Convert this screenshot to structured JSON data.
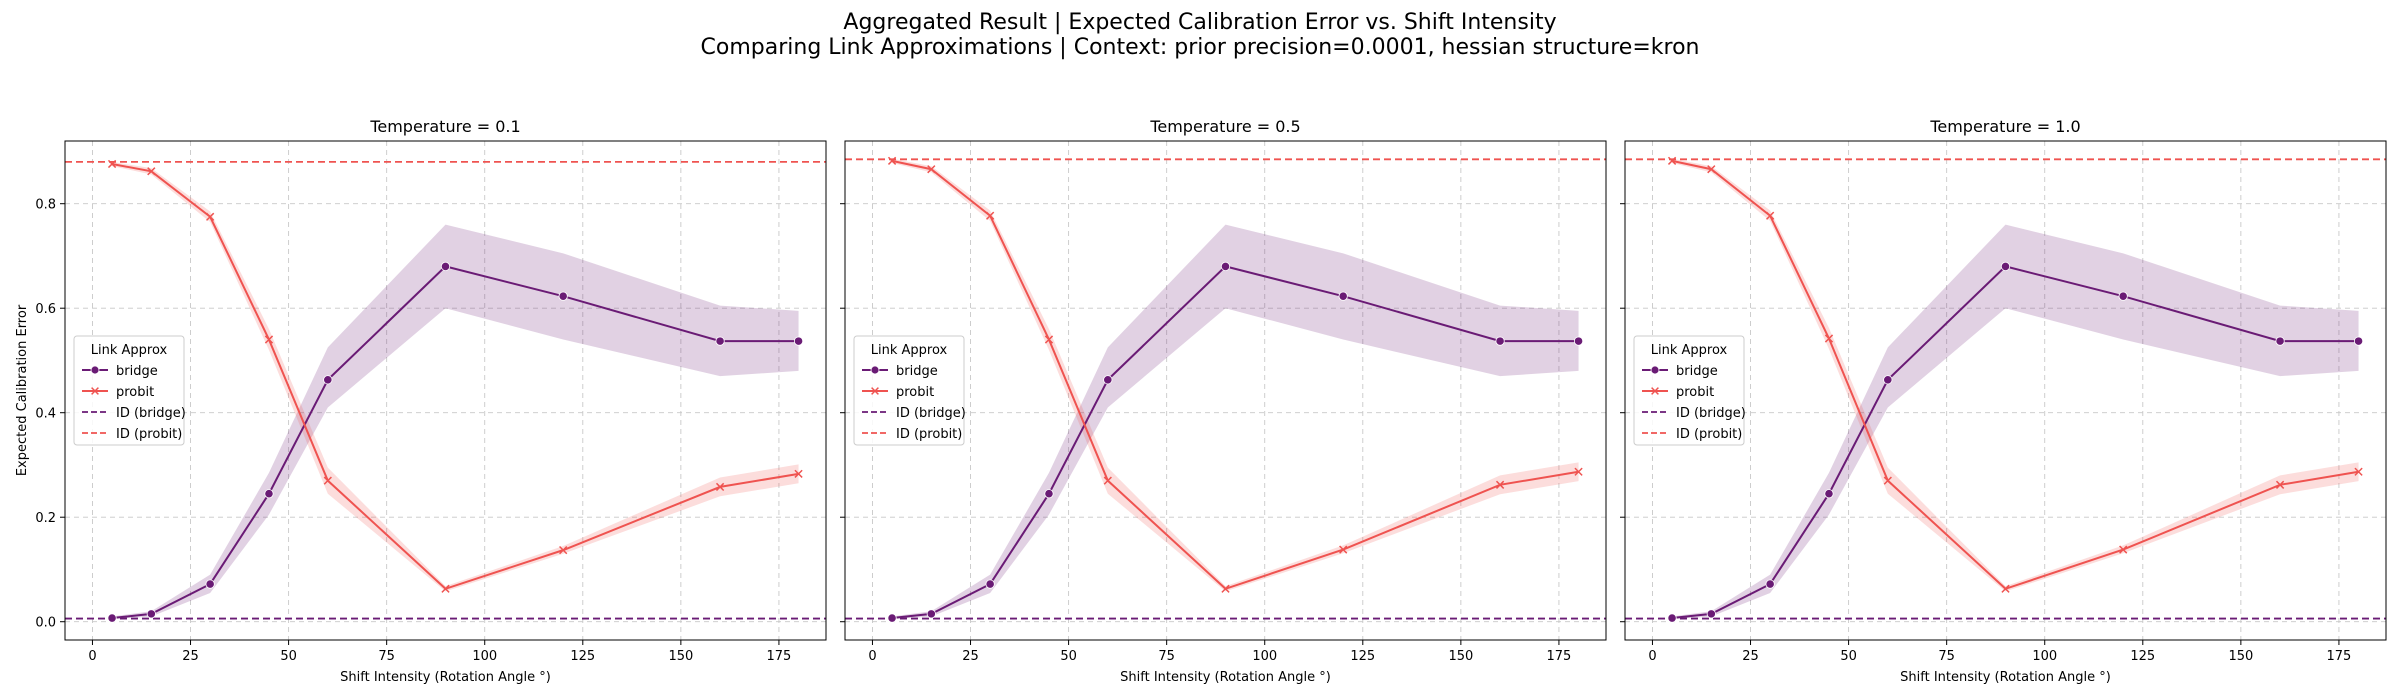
{
  "suptitle": {
    "line1": "Aggregated Result | Expected Calibration Error vs. Shift Intensity",
    "line2": "Comparing Link Approximations | Context: prior precision=0.0001, hessian structure=kron"
  },
  "colors": {
    "bridge": "#6a1b75",
    "probit": "#ef5350",
    "grid": "#c8c8c8"
  },
  "chart_data": [
    {
      "type": "line",
      "title": "Temperature = 0.1",
      "xlabel": "Shift Intensity (Rotation Angle °)",
      "ylabel": "Expected Calibration Error",
      "xlim": [
        -7,
        187
      ],
      "ylim": [
        -0.035,
        0.92
      ],
      "xticks": [
        "0",
        "25",
        "50",
        "75",
        "100",
        "125",
        "150",
        "175"
      ],
      "yticks": [
        "0.0",
        "0.2",
        "0.4",
        "0.6",
        "0.8"
      ],
      "grid": true,
      "legend": {
        "title": "Link Approx",
        "position": "center-left",
        "entries": [
          "bridge",
          "probit",
          "ID (bridge)",
          "ID (probit)"
        ]
      },
      "x": [
        5,
        15,
        30,
        45,
        60,
        90,
        120,
        160,
        180
      ],
      "series": [
        {
          "name": "bridge",
          "marker": "circle",
          "values": [
            0.007,
            0.015,
            0.072,
            0.245,
            0.463,
            0.68,
            0.623,
            0.537,
            0.537
          ],
          "ci_low": [
            0.005,
            0.01,
            0.055,
            0.205,
            0.41,
            0.6,
            0.54,
            0.47,
            0.48
          ],
          "ci_high": [
            0.01,
            0.02,
            0.09,
            0.285,
            0.525,
            0.76,
            0.705,
            0.605,
            0.595
          ]
        },
        {
          "name": "probit",
          "marker": "x",
          "values": [
            0.876,
            0.862,
            0.775,
            0.54,
            0.27,
            0.063,
            0.137,
            0.258,
            0.283
          ],
          "ci_low": [
            0.872,
            0.856,
            0.765,
            0.52,
            0.245,
            0.058,
            0.13,
            0.24,
            0.265
          ],
          "ci_high": [
            0.88,
            0.868,
            0.785,
            0.56,
            0.295,
            0.068,
            0.145,
            0.276,
            0.301
          ]
        }
      ],
      "reference_lines": [
        {
          "name": "ID (bridge)",
          "y": 0.006
        },
        {
          "name": "ID (probit)",
          "y": 0.88
        }
      ]
    },
    {
      "type": "line",
      "title": "Temperature = 0.5",
      "xlabel": "Shift Intensity (Rotation Angle °)",
      "ylabel": "",
      "xlim": [
        -7,
        187
      ],
      "ylim": [
        -0.035,
        0.92
      ],
      "xticks": [
        "0",
        "25",
        "50",
        "75",
        "100",
        "125",
        "150",
        "175"
      ],
      "yticks": [],
      "grid": true,
      "legend": {
        "title": "Link Approx",
        "position": "center-left",
        "entries": [
          "bridge",
          "probit",
          "ID (bridge)",
          "ID (probit)"
        ]
      },
      "x": [
        5,
        15,
        30,
        45,
        60,
        90,
        120,
        160,
        180
      ],
      "series": [
        {
          "name": "bridge",
          "marker": "circle",
          "values": [
            0.007,
            0.015,
            0.072,
            0.245,
            0.463,
            0.68,
            0.623,
            0.537,
            0.537
          ],
          "ci_low": [
            0.005,
            0.01,
            0.055,
            0.205,
            0.41,
            0.6,
            0.54,
            0.47,
            0.48
          ],
          "ci_high": [
            0.01,
            0.02,
            0.09,
            0.285,
            0.525,
            0.76,
            0.705,
            0.605,
            0.595
          ]
        },
        {
          "name": "probit",
          "marker": "x",
          "values": [
            0.882,
            0.866,
            0.777,
            0.54,
            0.27,
            0.063,
            0.138,
            0.262,
            0.287
          ],
          "ci_low": [
            0.878,
            0.86,
            0.767,
            0.52,
            0.245,
            0.058,
            0.131,
            0.244,
            0.269
          ],
          "ci_high": [
            0.886,
            0.872,
            0.787,
            0.56,
            0.295,
            0.068,
            0.146,
            0.28,
            0.305
          ]
        }
      ],
      "reference_lines": [
        {
          "name": "ID (bridge)",
          "y": 0.006
        },
        {
          "name": "ID (probit)",
          "y": 0.885
        }
      ]
    },
    {
      "type": "line",
      "title": "Temperature = 1.0",
      "xlabel": "Shift Intensity (Rotation Angle °)",
      "ylabel": "",
      "xlim": [
        -7,
        187
      ],
      "ylim": [
        -0.035,
        0.92
      ],
      "xticks": [
        "0",
        "25",
        "50",
        "75",
        "100",
        "125",
        "150",
        "175"
      ],
      "yticks": [],
      "grid": true,
      "legend": {
        "title": "Link Approx",
        "position": "center-left",
        "entries": [
          "bridge",
          "probit",
          "ID (bridge)",
          "ID (probit)"
        ]
      },
      "x": [
        5,
        15,
        30,
        45,
        60,
        90,
        120,
        160,
        180
      ],
      "series": [
        {
          "name": "bridge",
          "marker": "circle",
          "values": [
            0.007,
            0.015,
            0.072,
            0.245,
            0.463,
            0.68,
            0.623,
            0.537,
            0.537
          ],
          "ci_low": [
            0.005,
            0.01,
            0.055,
            0.205,
            0.41,
            0.6,
            0.54,
            0.47,
            0.48
          ],
          "ci_high": [
            0.01,
            0.02,
            0.09,
            0.285,
            0.525,
            0.76,
            0.705,
            0.605,
            0.595
          ]
        },
        {
          "name": "probit",
          "marker": "x",
          "values": [
            0.882,
            0.866,
            0.777,
            0.542,
            0.27,
            0.063,
            0.138,
            0.262,
            0.287
          ],
          "ci_low": [
            0.878,
            0.86,
            0.767,
            0.522,
            0.245,
            0.058,
            0.131,
            0.244,
            0.269
          ],
          "ci_high": [
            0.886,
            0.872,
            0.787,
            0.562,
            0.295,
            0.068,
            0.146,
            0.28,
            0.305
          ]
        }
      ],
      "reference_lines": [
        {
          "name": "ID (bridge)",
          "y": 0.006
        },
        {
          "name": "ID (probit)",
          "y": 0.885
        }
      ]
    }
  ]
}
